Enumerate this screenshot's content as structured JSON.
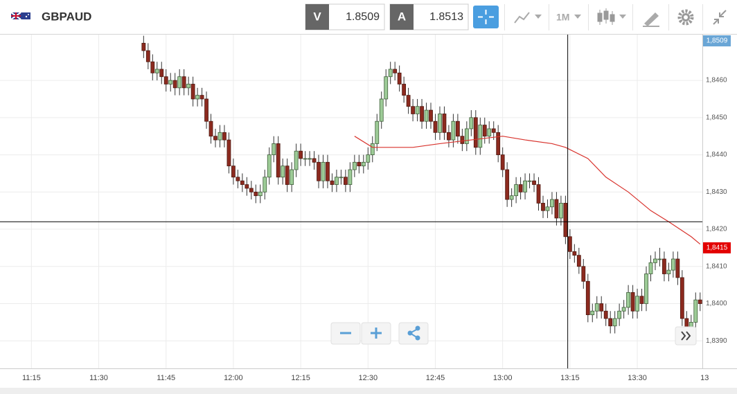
{
  "header": {
    "symbol": "GBPAUD",
    "bid_letter": "V",
    "bid": "1.8509",
    "ask_letter": "A",
    "ask": "1.8513",
    "timeframe": "1M"
  },
  "chart_data": {
    "type": "candlestick",
    "x": [
      700,
      701,
      702,
      703,
      704,
      705,
      706,
      707,
      708,
      709,
      710,
      711,
      712,
      713,
      714,
      715,
      716,
      717,
      718,
      719,
      720,
      721,
      722,
      723,
      724,
      725,
      726,
      727,
      728,
      729,
      730,
      731,
      732,
      733,
      734,
      735,
      736,
      737,
      738,
      739,
      740,
      741,
      742,
      743,
      744,
      745,
      746,
      747,
      748,
      749,
      750,
      751,
      752,
      753,
      754,
      755,
      756,
      757,
      758,
      759,
      760,
      761,
      762,
      763,
      764,
      765,
      766,
      767,
      768,
      769,
      770,
      771,
      772,
      773,
      774,
      775,
      776,
      777,
      778,
      779,
      780,
      781,
      782,
      783,
      784,
      785,
      786,
      787,
      788,
      789,
      790,
      791,
      792,
      793,
      794,
      795,
      796,
      797,
      798,
      799,
      800,
      801,
      802,
      803,
      804,
      805,
      806,
      807,
      808,
      809,
      810,
      811,
      812,
      813,
      814,
      815,
      816,
      817,
      818,
      819,
      820,
      821,
      822,
      823,
      824
    ],
    "candles": [
      [
        1.847,
        1.8472,
        1.8466,
        1.8468
      ],
      [
        1.8468,
        1.847,
        1.8463,
        1.8465
      ],
      [
        1.8465,
        1.8467,
        1.846,
        1.8462
      ],
      [
        1.8462,
        1.8465,
        1.846,
        1.8463
      ],
      [
        1.8463,
        1.8465,
        1.8459,
        1.8461
      ],
      [
        1.8461,
        1.8463,
        1.8457,
        1.8459
      ],
      [
        1.8459,
        1.8462,
        1.8457,
        1.846
      ],
      [
        1.846,
        1.8462,
        1.8456,
        1.8458
      ],
      [
        1.8458,
        1.8463,
        1.8456,
        1.8461
      ],
      [
        1.8461,
        1.8463,
        1.8456,
        1.8458
      ],
      [
        1.8458,
        1.8461,
        1.8456,
        1.8459
      ],
      [
        1.8459,
        1.8461,
        1.8453,
        1.8455
      ],
      [
        1.8455,
        1.8458,
        1.8453,
        1.8456
      ],
      [
        1.8456,
        1.8458,
        1.8453,
        1.8455
      ],
      [
        1.8455,
        1.8457,
        1.8447,
        1.8449
      ],
      [
        1.8449,
        1.8451,
        1.8443,
        1.8445
      ],
      [
        1.8445,
        1.8447,
        1.8442,
        1.8444
      ],
      [
        1.8444,
        1.8448,
        1.8442,
        1.8446
      ],
      [
        1.8446,
        1.8448,
        1.8442,
        1.8444
      ],
      [
        1.8444,
        1.8446,
        1.8435,
        1.8437
      ],
      [
        1.8437,
        1.8439,
        1.8432,
        1.8434
      ],
      [
        1.8434,
        1.8436,
        1.8431,
        1.8433
      ],
      [
        1.8433,
        1.8435,
        1.843,
        1.8432
      ],
      [
        1.8432,
        1.8434,
        1.8429,
        1.8431
      ],
      [
        1.8431,
        1.8433,
        1.8428,
        1.843
      ],
      [
        1.843,
        1.8432,
        1.8427,
        1.8429
      ],
      [
        1.8429,
        1.8432,
        1.8427,
        1.843
      ],
      [
        1.843,
        1.8436,
        1.8428,
        1.8434
      ],
      [
        1.8434,
        1.8442,
        1.8432,
        1.844
      ],
      [
        1.844,
        1.8445,
        1.8438,
        1.8443
      ],
      [
        1.8443,
        1.8445,
        1.8432,
        1.8434
      ],
      [
        1.8434,
        1.8439,
        1.8432,
        1.8437
      ],
      [
        1.8437,
        1.8439,
        1.843,
        1.8432
      ],
      [
        1.8432,
        1.8438,
        1.843,
        1.8436
      ],
      [
        1.8436,
        1.8443,
        1.8434,
        1.8441
      ],
      [
        1.8441,
        1.8443,
        1.8437,
        1.8439
      ],
      [
        1.8439,
        1.8441,
        1.8437,
        1.8439
      ],
      [
        1.8439,
        1.8441,
        1.8437,
        1.8439
      ],
      [
        1.8439,
        1.8441,
        1.8436,
        1.8438
      ],
      [
        1.8438,
        1.844,
        1.8431,
        1.8433
      ],
      [
        1.8433,
        1.844,
        1.8431,
        1.8438
      ],
      [
        1.8438,
        1.844,
        1.8431,
        1.8433
      ],
      [
        1.8433,
        1.8435,
        1.843,
        1.8432
      ],
      [
        1.8432,
        1.8436,
        1.843,
        1.8434
      ],
      [
        1.8434,
        1.8436,
        1.8432,
        1.8434
      ],
      [
        1.8434,
        1.8436,
        1.843,
        1.8432
      ],
      [
        1.8432,
        1.8438,
        1.843,
        1.8436
      ],
      [
        1.8436,
        1.844,
        1.8434,
        1.8438
      ],
      [
        1.8438,
        1.844,
        1.8435,
        1.8437
      ],
      [
        1.8437,
        1.844,
        1.8435,
        1.8438
      ],
      [
        1.8438,
        1.8442,
        1.8436,
        1.844
      ],
      [
        1.844,
        1.8445,
        1.8438,
        1.8443
      ],
      [
        1.8443,
        1.8451,
        1.8441,
        1.8449
      ],
      [
        1.8449,
        1.8457,
        1.8447,
        1.8455
      ],
      [
        1.8455,
        1.8463,
        1.8453,
        1.8461
      ],
      [
        1.8461,
        1.8465,
        1.8459,
        1.8463
      ],
      [
        1.8463,
        1.8465,
        1.846,
        1.8462
      ],
      [
        1.8462,
        1.8464,
        1.8457,
        1.8459
      ],
      [
        1.8459,
        1.8461,
        1.8454,
        1.8456
      ],
      [
        1.8456,
        1.8458,
        1.8451,
        1.8453
      ],
      [
        1.8453,
        1.8455,
        1.8449,
        1.8451
      ],
      [
        1.8451,
        1.8455,
        1.8449,
        1.8453
      ],
      [
        1.8453,
        1.8455,
        1.8447,
        1.8449
      ],
      [
        1.8449,
        1.8454,
        1.8447,
        1.8452
      ],
      [
        1.8452,
        1.8454,
        1.8447,
        1.8449
      ],
      [
        1.8449,
        1.8451,
        1.8444,
        1.8446
      ],
      [
        1.8446,
        1.8453,
        1.8444,
        1.8451
      ],
      [
        1.8451,
        1.8453,
        1.8444,
        1.8446
      ],
      [
        1.8446,
        1.8448,
        1.8442,
        1.8444
      ],
      [
        1.8444,
        1.8451,
        1.8442,
        1.8449
      ],
      [
        1.8449,
        1.8451,
        1.8443,
        1.8445
      ],
      [
        1.8445,
        1.8447,
        1.8441,
        1.8443
      ],
      [
        1.8443,
        1.8449,
        1.8441,
        1.8447
      ],
      [
        1.8447,
        1.8452,
        1.8445,
        1.845
      ],
      [
        1.845,
        1.8452,
        1.844,
        1.8442
      ],
      [
        1.8442,
        1.845,
        1.844,
        1.8448
      ],
      [
        1.8448,
        1.845,
        1.8443,
        1.8445
      ],
      [
        1.8445,
        1.8449,
        1.8443,
        1.8447
      ],
      [
        1.8447,
        1.8449,
        1.8444,
        1.8446
      ],
      [
        1.8446,
        1.8448,
        1.8438,
        1.844
      ],
      [
        1.844,
        1.8442,
        1.8434,
        1.8436
      ],
      [
        1.8436,
        1.8438,
        1.8426,
        1.8428
      ],
      [
        1.8428,
        1.8431,
        1.8426,
        1.8429
      ],
      [
        1.8429,
        1.8434,
        1.8427,
        1.8432
      ],
      [
        1.8432,
        1.8434,
        1.8428,
        1.843
      ],
      [
        1.843,
        1.8435,
        1.8428,
        1.8433
      ],
      [
        1.8433,
        1.8435,
        1.8431,
        1.8433
      ],
      [
        1.8433,
        1.8435,
        1.843,
        1.8432
      ],
      [
        1.8432,
        1.8434,
        1.8425,
        1.8427
      ],
      [
        1.8427,
        1.8429,
        1.8423,
        1.8425
      ],
      [
        1.8425,
        1.8428,
        1.8423,
        1.8426
      ],
      [
        1.8426,
        1.843,
        1.8424,
        1.8428
      ],
      [
        1.8428,
        1.843,
        1.8421,
        1.8423
      ],
      [
        1.8423,
        1.8429,
        1.8421,
        1.8427
      ],
      [
        1.8427,
        1.8429,
        1.8416,
        1.8418
      ],
      [
        1.8418,
        1.842,
        1.8412,
        1.8414
      ],
      [
        1.8414,
        1.8416,
        1.8411,
        1.8413
      ],
      [
        1.8413,
        1.8415,
        1.8408,
        1.841
      ],
      [
        1.841,
        1.8412,
        1.8404,
        1.8406
      ],
      [
        1.8406,
        1.8408,
        1.8395,
        1.8397
      ],
      [
        1.8397,
        1.84,
        1.8395,
        1.8398
      ],
      [
        1.8398,
        1.8402,
        1.8396,
        1.84
      ],
      [
        1.84,
        1.8402,
        1.8396,
        1.8398
      ],
      [
        1.8398,
        1.84,
        1.8394,
        1.8396
      ],
      [
        1.8396,
        1.8398,
        1.8392,
        1.8394
      ],
      [
        1.8394,
        1.8398,
        1.8392,
        1.8396
      ],
      [
        1.8396,
        1.84,
        1.8394,
        1.8398
      ],
      [
        1.8398,
        1.8401,
        1.8396,
        1.8399
      ],
      [
        1.8399,
        1.8405,
        1.8397,
        1.8403
      ],
      [
        1.8403,
        1.8405,
        1.8396,
        1.8398
      ],
      [
        1.8398,
        1.8404,
        1.8396,
        1.8402
      ],
      [
        1.8402,
        1.8404,
        1.8398,
        1.84
      ],
      [
        1.84,
        1.841,
        1.8398,
        1.8408
      ],
      [
        1.8408,
        1.8413,
        1.8406,
        1.8411
      ],
      [
        1.8411,
        1.8414,
        1.8409,
        1.8412
      ],
      [
        1.8412,
        1.8415,
        1.841,
        1.8412
      ],
      [
        1.8412,
        1.8414,
        1.8406,
        1.8408
      ],
      [
        1.8408,
        1.8411,
        1.8406,
        1.8409
      ],
      [
        1.8409,
        1.8414,
        1.8407,
        1.8412
      ],
      [
        1.8412,
        1.8414,
        1.8405,
        1.8407
      ],
      [
        1.8407,
        1.8409,
        1.8394,
        1.8396
      ],
      [
        1.8396,
        1.8398,
        1.8391,
        1.8393
      ],
      [
        1.8393,
        1.8397,
        1.8391,
        1.8395
      ],
      [
        1.8395,
        1.8403,
        1.8393,
        1.8401
      ],
      [
        1.8401,
        1.8403,
        1.8398,
        1.84
      ]
    ],
    "up_color": "#9dcb97",
    "down_color": "#8c2a1f",
    "moving_average": {
      "color": "#d8322c",
      "x": [
        747,
        751,
        754,
        760,
        766,
        773,
        780,
        785,
        791,
        794,
        799,
        803,
        808,
        813,
        817,
        822,
        824
      ],
      "values": [
        1.8445,
        1.8442,
        1.8442,
        1.8442,
        1.8443,
        1.8444,
        1.8445,
        1.8444,
        1.8443,
        1.8442,
        1.8439,
        1.8434,
        1.843,
        1.8425,
        1.8422,
        1.8418,
        1.8416
      ]
    },
    "crosshair": {
      "x": 794.5,
      "y": 1.8422
    },
    "price_badges": [
      {
        "value": 1.8509,
        "label": "1,8509",
        "color": "#6aa6d6"
      },
      {
        "value": 1.8415,
        "label": "1,8415",
        "color": "#e30000"
      }
    ],
    "xlim": [
      668,
      824.5
    ],
    "ylim": [
      1.83826,
      1.84723
    ],
    "xticks": [
      {
        "value": 675,
        "label": "11:15"
      },
      {
        "value": 690,
        "label": "11:30"
      },
      {
        "value": 705,
        "label": "11:45"
      },
      {
        "value": 720,
        "label": "12:00"
      },
      {
        "value": 735,
        "label": "12:15"
      },
      {
        "value": 750,
        "label": "12:30"
      },
      {
        "value": 765,
        "label": "12:45"
      },
      {
        "value": 780,
        "label": "13:00"
      },
      {
        "value": 795,
        "label": "13:15"
      },
      {
        "value": 810,
        "label": "13:30"
      },
      {
        "value": 825,
        "label": "13"
      }
    ],
    "yticks": [
      {
        "value": 1.839,
        "label": "1,8390"
      },
      {
        "value": 1.84,
        "label": "1,8400"
      },
      {
        "value": 1.841,
        "label": "1,8410"
      },
      {
        "value": 1.842,
        "label": "1,8420"
      },
      {
        "value": 1.843,
        "label": "1,8430"
      },
      {
        "value": 1.844,
        "label": "1,8440"
      },
      {
        "value": 1.845,
        "label": "1,8450"
      },
      {
        "value": 1.846,
        "label": "1,8460"
      }
    ],
    "grid": true
  }
}
